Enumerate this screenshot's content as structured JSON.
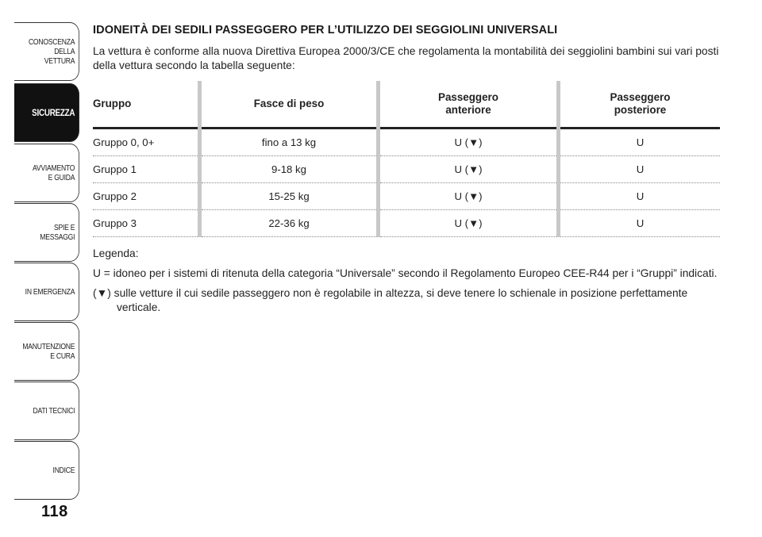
{
  "sidebar": {
    "tabs": [
      {
        "label": "CONOSCENZA\nDELLA\nVETTURA",
        "active": false
      },
      {
        "label": "SICUREZZA",
        "active": true
      },
      {
        "label": "AVVIAMENTO\nE GUIDA",
        "active": false
      },
      {
        "label": "SPIE E\nMESSAGGI",
        "active": false
      },
      {
        "label": "IN EMERGENZA",
        "active": false
      },
      {
        "label": "MANUTENZIONE\nE CURA",
        "active": false
      },
      {
        "label": "DATI TECNICI",
        "active": false
      },
      {
        "label": "INDICE",
        "active": false
      }
    ],
    "page_number": "118"
  },
  "content": {
    "title": "IDONEITÀ DEI SEDILI PASSEGGERO PER L’UTILIZZO DEI SEGGIOLINI UNIVERSALI",
    "intro": "La vettura è conforme alla nuova Direttiva Europea 2000/3/CE che regolamenta la montabilità dei seggiolini bambini sui vari posti della vettura secondo la tabella seguente:",
    "table": {
      "headers": [
        "Gruppo",
        "Fasce di peso",
        "Passeggero\nanteriore",
        "Passeggero\nposteriore"
      ],
      "rows": [
        [
          "Gruppo 0, 0+",
          "fino a 13 kg",
          "U (▼)",
          "U"
        ],
        [
          "Gruppo 1",
          "9-18 kg",
          "U (▼)",
          "U"
        ],
        [
          "Gruppo 2",
          "15-25 kg",
          "U (▼)",
          "U"
        ],
        [
          "Gruppo 3",
          "22-36 kg",
          "U (▼)",
          "U"
        ]
      ]
    },
    "legend_title": "Legenda:",
    "legend_u": "U = idoneo per i sistemi di ritenuta della categoria “Universale” secondo il Regolamento Europeo CEE-R44 per i “Gruppi” indicati.",
    "legend_triangle": "(▼) sulle vetture il cui sedile passeggero non è regolabile in altezza, si deve tenere lo schienale in posizione perfettamente verticale."
  }
}
